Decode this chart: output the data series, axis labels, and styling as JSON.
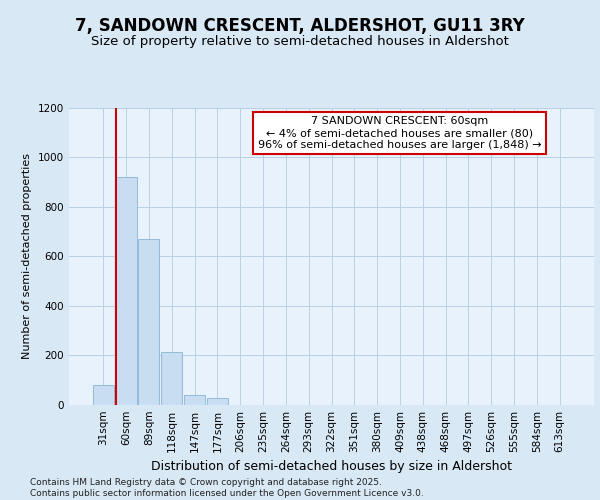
{
  "title": "7, SANDOWN CRESCENT, ALDERSHOT, GU11 3RY",
  "subtitle": "Size of property relative to semi-detached houses in Aldershot",
  "xlabel": "Distribution of semi-detached houses by size in Aldershot",
  "ylabel": "Number of semi-detached properties",
  "categories": [
    "31sqm",
    "60sqm",
    "89sqm",
    "118sqm",
    "147sqm",
    "177sqm",
    "206sqm",
    "235sqm",
    "264sqm",
    "293sqm",
    "322sqm",
    "351sqm",
    "380sqm",
    "409sqm",
    "438sqm",
    "468sqm",
    "497sqm",
    "526sqm",
    "555sqm",
    "584sqm",
    "613sqm"
  ],
  "values": [
    80,
    920,
    670,
    215,
    40,
    30,
    0,
    0,
    0,
    0,
    0,
    0,
    0,
    0,
    0,
    0,
    0,
    0,
    0,
    0,
    0
  ],
  "bar_color": "#c8ddf2",
  "bar_edge_color": "#8ab4d8",
  "vline_color": "#cc0000",
  "annotation_text": "7 SANDOWN CRESCENT: 60sqm\n← 4% of semi-detached houses are smaller (80)\n96% of semi-detached houses are larger (1,848) →",
  "annotation_box_facecolor": "#ffffff",
  "annotation_box_edgecolor": "#cc0000",
  "ylim": [
    0,
    1200
  ],
  "yticks": [
    0,
    200,
    400,
    600,
    800,
    1000,
    1200
  ],
  "grid_color": "#b8cfe8",
  "background_color": "#d8e8f5",
  "plot_bg_color": "#e8f2fc",
  "footer": "Contains HM Land Registry data © Crown copyright and database right 2025.\nContains public sector information licensed under the Open Government Licence v3.0.",
  "title_fontsize": 12,
  "subtitle_fontsize": 9.5,
  "ylabel_fontsize": 8,
  "xlabel_fontsize": 9,
  "tick_fontsize": 7.5,
  "annot_fontsize": 8,
  "footer_fontsize": 6.5
}
